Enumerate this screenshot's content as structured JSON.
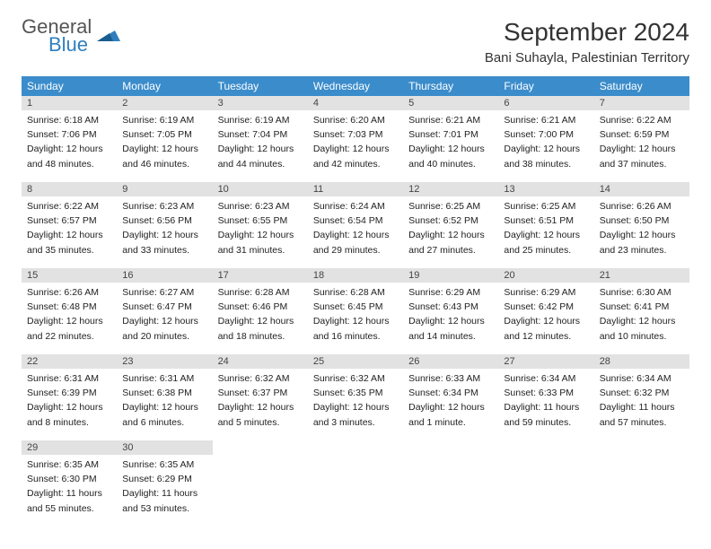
{
  "brand": {
    "line1": "General",
    "line2": "Blue"
  },
  "title": "September 2024",
  "location": "Bani Suhayla, Palestinian Territory",
  "colors": {
    "header_bg": "#3b8ccb",
    "header_text": "#ffffff",
    "daynum_bg": "#e2e2e2",
    "rule": "#3b8ccb",
    "logo_blue": "#2f7fbf"
  },
  "fonts": {
    "title_size": 28,
    "location_size": 15,
    "dayhead_size": 12,
    "daynum_size": 11,
    "body_size": 10.5
  },
  "dayNames": [
    "Sunday",
    "Monday",
    "Tuesday",
    "Wednesday",
    "Thursday",
    "Friday",
    "Saturday"
  ],
  "weeks": [
    [
      {
        "n": "1",
        "sr": "Sunrise: 6:18 AM",
        "ss": "Sunset: 7:06 PM",
        "d1": "Daylight: 12 hours",
        "d2": "and 48 minutes."
      },
      {
        "n": "2",
        "sr": "Sunrise: 6:19 AM",
        "ss": "Sunset: 7:05 PM",
        "d1": "Daylight: 12 hours",
        "d2": "and 46 minutes."
      },
      {
        "n": "3",
        "sr": "Sunrise: 6:19 AM",
        "ss": "Sunset: 7:04 PM",
        "d1": "Daylight: 12 hours",
        "d2": "and 44 minutes."
      },
      {
        "n": "4",
        "sr": "Sunrise: 6:20 AM",
        "ss": "Sunset: 7:03 PM",
        "d1": "Daylight: 12 hours",
        "d2": "and 42 minutes."
      },
      {
        "n": "5",
        "sr": "Sunrise: 6:21 AM",
        "ss": "Sunset: 7:01 PM",
        "d1": "Daylight: 12 hours",
        "d2": "and 40 minutes."
      },
      {
        "n": "6",
        "sr": "Sunrise: 6:21 AM",
        "ss": "Sunset: 7:00 PM",
        "d1": "Daylight: 12 hours",
        "d2": "and 38 minutes."
      },
      {
        "n": "7",
        "sr": "Sunrise: 6:22 AM",
        "ss": "Sunset: 6:59 PM",
        "d1": "Daylight: 12 hours",
        "d2": "and 37 minutes."
      }
    ],
    [
      {
        "n": "8",
        "sr": "Sunrise: 6:22 AM",
        "ss": "Sunset: 6:57 PM",
        "d1": "Daylight: 12 hours",
        "d2": "and 35 minutes."
      },
      {
        "n": "9",
        "sr": "Sunrise: 6:23 AM",
        "ss": "Sunset: 6:56 PM",
        "d1": "Daylight: 12 hours",
        "d2": "and 33 minutes."
      },
      {
        "n": "10",
        "sr": "Sunrise: 6:23 AM",
        "ss": "Sunset: 6:55 PM",
        "d1": "Daylight: 12 hours",
        "d2": "and 31 minutes."
      },
      {
        "n": "11",
        "sr": "Sunrise: 6:24 AM",
        "ss": "Sunset: 6:54 PM",
        "d1": "Daylight: 12 hours",
        "d2": "and 29 minutes."
      },
      {
        "n": "12",
        "sr": "Sunrise: 6:25 AM",
        "ss": "Sunset: 6:52 PM",
        "d1": "Daylight: 12 hours",
        "d2": "and 27 minutes."
      },
      {
        "n": "13",
        "sr": "Sunrise: 6:25 AM",
        "ss": "Sunset: 6:51 PM",
        "d1": "Daylight: 12 hours",
        "d2": "and 25 minutes."
      },
      {
        "n": "14",
        "sr": "Sunrise: 6:26 AM",
        "ss": "Sunset: 6:50 PM",
        "d1": "Daylight: 12 hours",
        "d2": "and 23 minutes."
      }
    ],
    [
      {
        "n": "15",
        "sr": "Sunrise: 6:26 AM",
        "ss": "Sunset: 6:48 PM",
        "d1": "Daylight: 12 hours",
        "d2": "and 22 minutes."
      },
      {
        "n": "16",
        "sr": "Sunrise: 6:27 AM",
        "ss": "Sunset: 6:47 PM",
        "d1": "Daylight: 12 hours",
        "d2": "and 20 minutes."
      },
      {
        "n": "17",
        "sr": "Sunrise: 6:28 AM",
        "ss": "Sunset: 6:46 PM",
        "d1": "Daylight: 12 hours",
        "d2": "and 18 minutes."
      },
      {
        "n": "18",
        "sr": "Sunrise: 6:28 AM",
        "ss": "Sunset: 6:45 PM",
        "d1": "Daylight: 12 hours",
        "d2": "and 16 minutes."
      },
      {
        "n": "19",
        "sr": "Sunrise: 6:29 AM",
        "ss": "Sunset: 6:43 PM",
        "d1": "Daylight: 12 hours",
        "d2": "and 14 minutes."
      },
      {
        "n": "20",
        "sr": "Sunrise: 6:29 AM",
        "ss": "Sunset: 6:42 PM",
        "d1": "Daylight: 12 hours",
        "d2": "and 12 minutes."
      },
      {
        "n": "21",
        "sr": "Sunrise: 6:30 AM",
        "ss": "Sunset: 6:41 PM",
        "d1": "Daylight: 12 hours",
        "d2": "and 10 minutes."
      }
    ],
    [
      {
        "n": "22",
        "sr": "Sunrise: 6:31 AM",
        "ss": "Sunset: 6:39 PM",
        "d1": "Daylight: 12 hours",
        "d2": "and 8 minutes."
      },
      {
        "n": "23",
        "sr": "Sunrise: 6:31 AM",
        "ss": "Sunset: 6:38 PM",
        "d1": "Daylight: 12 hours",
        "d2": "and 6 minutes."
      },
      {
        "n": "24",
        "sr": "Sunrise: 6:32 AM",
        "ss": "Sunset: 6:37 PM",
        "d1": "Daylight: 12 hours",
        "d2": "and 5 minutes."
      },
      {
        "n": "25",
        "sr": "Sunrise: 6:32 AM",
        "ss": "Sunset: 6:35 PM",
        "d1": "Daylight: 12 hours",
        "d2": "and 3 minutes."
      },
      {
        "n": "26",
        "sr": "Sunrise: 6:33 AM",
        "ss": "Sunset: 6:34 PM",
        "d1": "Daylight: 12 hours",
        "d2": "and 1 minute."
      },
      {
        "n": "27",
        "sr": "Sunrise: 6:34 AM",
        "ss": "Sunset: 6:33 PM",
        "d1": "Daylight: 11 hours",
        "d2": "and 59 minutes."
      },
      {
        "n": "28",
        "sr": "Sunrise: 6:34 AM",
        "ss": "Sunset: 6:32 PM",
        "d1": "Daylight: 11 hours",
        "d2": "and 57 minutes."
      }
    ],
    [
      {
        "n": "29",
        "sr": "Sunrise: 6:35 AM",
        "ss": "Sunset: 6:30 PM",
        "d1": "Daylight: 11 hours",
        "d2": "and 55 minutes."
      },
      {
        "n": "30",
        "sr": "Sunrise: 6:35 AM",
        "ss": "Sunset: 6:29 PM",
        "d1": "Daylight: 11 hours",
        "d2": "and 53 minutes."
      },
      null,
      null,
      null,
      null,
      null
    ]
  ]
}
